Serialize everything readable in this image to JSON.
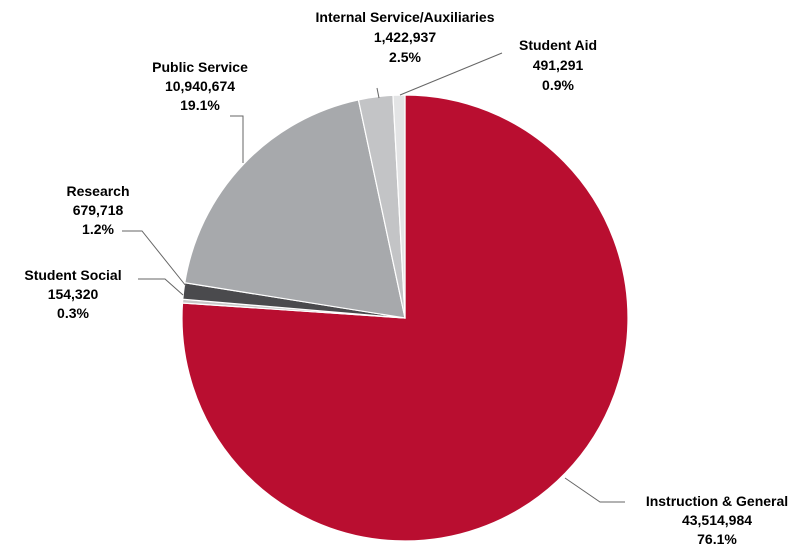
{
  "chart_data": {
    "type": "pie",
    "slices": [
      {
        "name": "Instruction & General",
        "value": 43514984,
        "value_label": "43,514,984",
        "percent_label": "76.1%",
        "color": "#b90e30"
      },
      {
        "name": "Student Social",
        "value": 154320,
        "value_label": "154,320",
        "percent_label": "0.3%",
        "color": "#c8c8c8"
      },
      {
        "name": "Research",
        "value": 679718,
        "value_label": "679,718",
        "percent_label": "1.2%",
        "color": "#4a4a4d"
      },
      {
        "name": "Public Service",
        "value": 10940674,
        "value_label": "10,940,674",
        "percent_label": "19.1%",
        "color": "#a7a9ac"
      },
      {
        "name": "Internal Service/Auxiliaries",
        "value": 1422937,
        "value_label": "1,422,937",
        "percent_label": "2.5%",
        "color": "#c3c4c6"
      },
      {
        "name": "Student Aid",
        "value": 491291,
        "value_label": "491,291",
        "percent_label": "0.9%",
        "color": "#e3e4e5"
      }
    ]
  }
}
